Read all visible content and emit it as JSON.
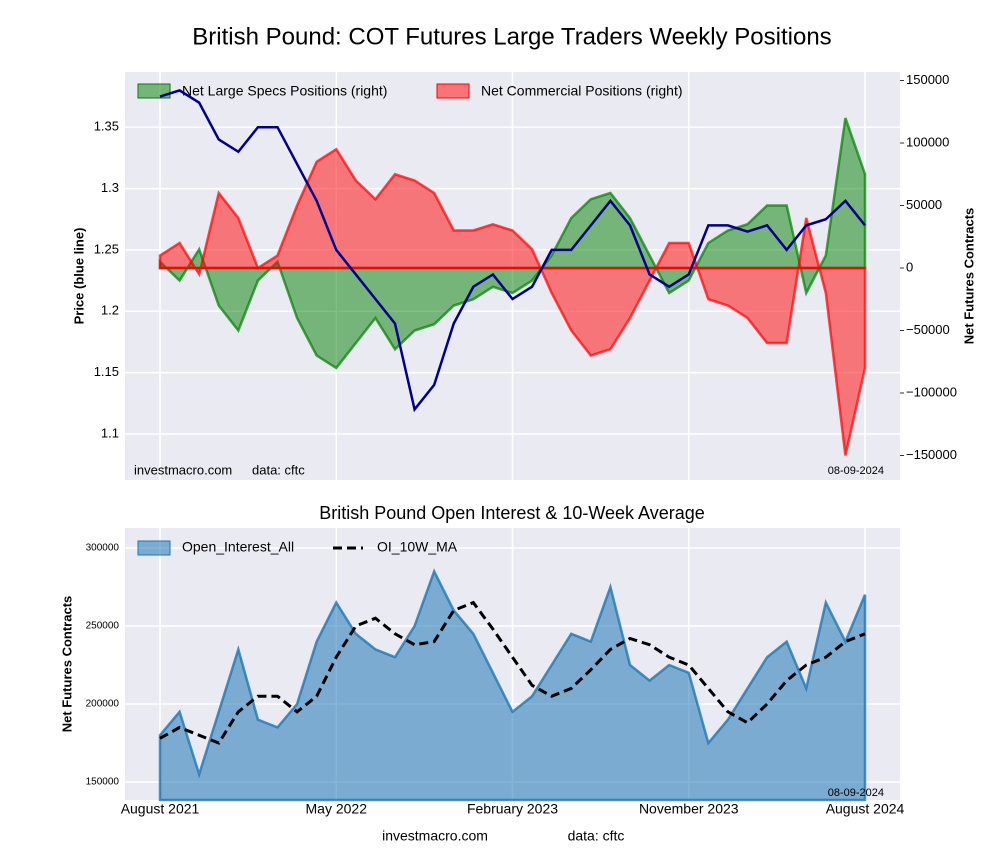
{
  "chart_data": [
    {
      "type": "line",
      "title": "British Pound: COT Futures Large Traders Weekly Positions",
      "ylabel": "Price (blue line)",
      "y2label": "Net Futures Contracts",
      "categories": [
        "August 2021",
        "September 2021",
        "October 2021",
        "November 2021",
        "December 2021",
        "January 2022",
        "February 2022",
        "March 2022",
        "April 2022",
        "May 2022",
        "June 2022",
        "July 2022",
        "August 2022",
        "September 2022",
        "October 2022",
        "November 2022",
        "December 2022",
        "January 2023",
        "February 2023",
        "March 2023",
        "April 2023",
        "May 2023",
        "June 2023",
        "July 2023",
        "August 2023",
        "September 2023",
        "October 2023",
        "November 2023",
        "December 2023",
        "January 2024",
        "February 2024",
        "March 2024",
        "April 2024",
        "May 2024",
        "June 2024",
        "July 2024",
        "August 2024"
      ],
      "values": [
        1.375,
        1.38,
        1.37,
        1.34,
        1.33,
        1.35,
        1.35,
        1.32,
        1.29,
        1.25,
        1.23,
        1.21,
        1.19,
        1.12,
        1.14,
        1.19,
        1.22,
        1.23,
        1.21,
        1.22,
        1.25,
        1.25,
        1.27,
        1.29,
        1.27,
        1.23,
        1.22,
        1.23,
        1.27,
        1.27,
        1.265,
        1.27,
        1.25,
        1.27,
        1.275,
        1.29,
        1.27
      ],
      "color": "#00008b",
      "series": [
        {
          "name": "Net Large Specs Positions (right)",
          "color": "#008000",
          "axis": "y2",
          "values": [
            5000,
            -10000,
            15000,
            -30000,
            -50000,
            -10000,
            5000,
            -40000,
            -70000,
            -80000,
            -60000,
            -40000,
            -65000,
            -50000,
            -45000,
            -30000,
            -25000,
            -15000,
            -20000,
            -10000,
            10000,
            40000,
            55000,
            60000,
            40000,
            10000,
            -20000,
            -10000,
            20000,
            30000,
            35000,
            50000,
            50000,
            -20000,
            10000,
            120000,
            75000
          ]
        },
        {
          "name": "Net Commercial Positions (right)",
          "color": "#ff0000",
          "axis": "y2",
          "values": [
            10000,
            20000,
            -5000,
            60000,
            40000,
            0,
            10000,
            50000,
            85000,
            95000,
            70000,
            55000,
            75000,
            70000,
            60000,
            30000,
            30000,
            35000,
            30000,
            15000,
            -20000,
            -50000,
            -70000,
            -65000,
            -40000,
            -10000,
            20000,
            20000,
            -25000,
            -30000,
            -40000,
            -60000,
            -60000,
            40000,
            -20000,
            -150000,
            -80000
          ]
        }
      ],
      "ylim": [
        1.0625,
        1.395
      ],
      "yticks": [
        1.1,
        1.15,
        1.2,
        1.25,
        1.3,
        1.35
      ],
      "y2lim": [
        -169600,
        156800
      ],
      "y2ticks": [
        {
          "value": -150000,
          "label": "−150000"
        },
        {
          "value": -100000,
          "label": "−100000"
        },
        {
          "value": -50000,
          "label": "−50000"
        },
        0,
        50000,
        100000,
        150000
      ],
      "grid": true,
      "legend": "upper left",
      "annotations": [
        "investmacro.com",
        "data: cftc",
        "08-09-2024"
      ]
    },
    {
      "type": "area",
      "title": "British Pound Open Interest & 10-Week Average",
      "ylabel": "Net Futures Contracts",
      "categories": [
        "August 2021",
        "September 2021",
        "October 2021",
        "November 2021",
        "December 2021",
        "January 2022",
        "February 2022",
        "March 2022",
        "April 2022",
        "May 2022",
        "June 2022",
        "July 2022",
        "August 2022",
        "September 2022",
        "October 2022",
        "November 2022",
        "December 2022",
        "January 2023",
        "February 2023",
        "March 2023",
        "April 2023",
        "May 2023",
        "June 2023",
        "July 2023",
        "August 2023",
        "September 2023",
        "October 2023",
        "November 2023",
        "December 2023",
        "January 2024",
        "February 2024",
        "March 2024",
        "April 2024",
        "May 2024",
        "June 2024",
        "July 2024",
        "August 2024"
      ],
      "xticks": [
        "August 2021",
        "May 2022",
        "February 2023",
        "November 2023",
        "August 2024"
      ],
      "series": [
        {
          "name": "Open_Interest_All",
          "color": "#1f77b4",
          "values": [
            180000,
            195000,
            155000,
            195000,
            235000,
            190000,
            185000,
            200000,
            240000,
            265000,
            245000,
            235000,
            230000,
            250000,
            285000,
            260000,
            245000,
            220000,
            195000,
            205000,
            225000,
            245000,
            240000,
            275000,
            225000,
            215000,
            225000,
            220000,
            175000,
            190000,
            210000,
            230000,
            240000,
            210000,
            265000,
            240000,
            270000
          ]
        },
        {
          "name": "OI_10W_MA",
          "color": "#000000",
          "dashed": true,
          "values": [
            178000,
            185000,
            180000,
            175000,
            195000,
            205000,
            205000,
            195000,
            205000,
            230000,
            250000,
            255000,
            245000,
            238000,
            240000,
            260000,
            265000,
            248000,
            230000,
            212000,
            205000,
            210000,
            222000,
            235000,
            242000,
            238000,
            230000,
            225000,
            210000,
            195000,
            188000,
            200000,
            215000,
            225000,
            230000,
            240000,
            245000
          ]
        }
      ],
      "ylim": [
        138500,
        312800
      ],
      "yticks": [
        150000,
        200000,
        250000,
        300000
      ],
      "grid": true,
      "legend": "upper left",
      "annotations": [
        "08-09-2024"
      ]
    }
  ],
  "footer": [
    "investmacro.com",
    "data: cftc"
  ]
}
